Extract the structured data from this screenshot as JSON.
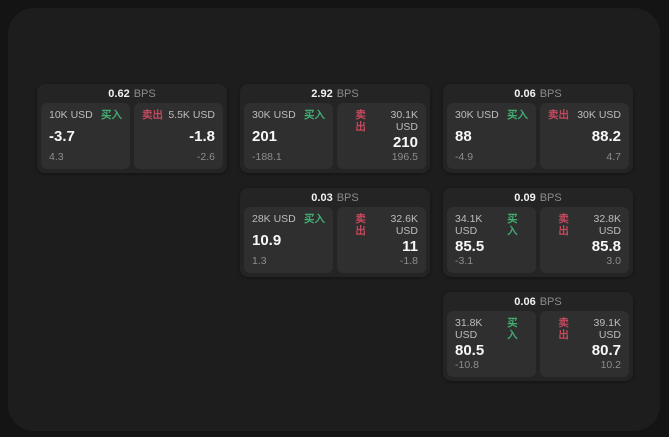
{
  "labels": {
    "bps_unit": "BPS",
    "buy": "买入",
    "sell": "卖出"
  },
  "colors": {
    "background": "#141414",
    "panel": "#1d1d1d",
    "card": "#242424",
    "tile": "#2f2f2f",
    "buy_green": "#42ab72",
    "sell_red": "#c4485e"
  },
  "cards": [
    {
      "bps": "0.62",
      "buy": {
        "amount": "10K USD",
        "value": "-3.7",
        "change": "4.3"
      },
      "sell": {
        "amount": "5.5K USD",
        "value": "-1.8",
        "change": "-2.6"
      }
    },
    {
      "bps": "2.92",
      "buy": {
        "amount": "30K USD",
        "value": "201",
        "change": "-188.1"
      },
      "sell": {
        "amount": "30.1K USD",
        "value": "210",
        "change": "196.5"
      }
    },
    {
      "bps": "0.06",
      "buy": {
        "amount": "30K USD",
        "value": "88",
        "change": "-4.9"
      },
      "sell": {
        "amount": "30K USD",
        "value": "88.2",
        "change": "4.7"
      }
    },
    {
      "bps": "0.03",
      "buy": {
        "amount": "28K USD",
        "value": "10.9",
        "change": "1.3"
      },
      "sell": {
        "amount": "32.6K USD",
        "value": "11",
        "change": "-1.8"
      }
    },
    {
      "bps": "0.09",
      "buy": {
        "amount": "34.1K USD",
        "value": "85.5",
        "change": "-3.1"
      },
      "sell": {
        "amount": "32.8K USD",
        "value": "85.8",
        "change": "3.0"
      }
    },
    {
      "bps": "0.06",
      "buy": {
        "amount": "31.8K USD",
        "value": "80.5",
        "change": "-10.8"
      },
      "sell": {
        "amount": "39.1K USD",
        "value": "80.7",
        "change": "10.2"
      }
    }
  ]
}
